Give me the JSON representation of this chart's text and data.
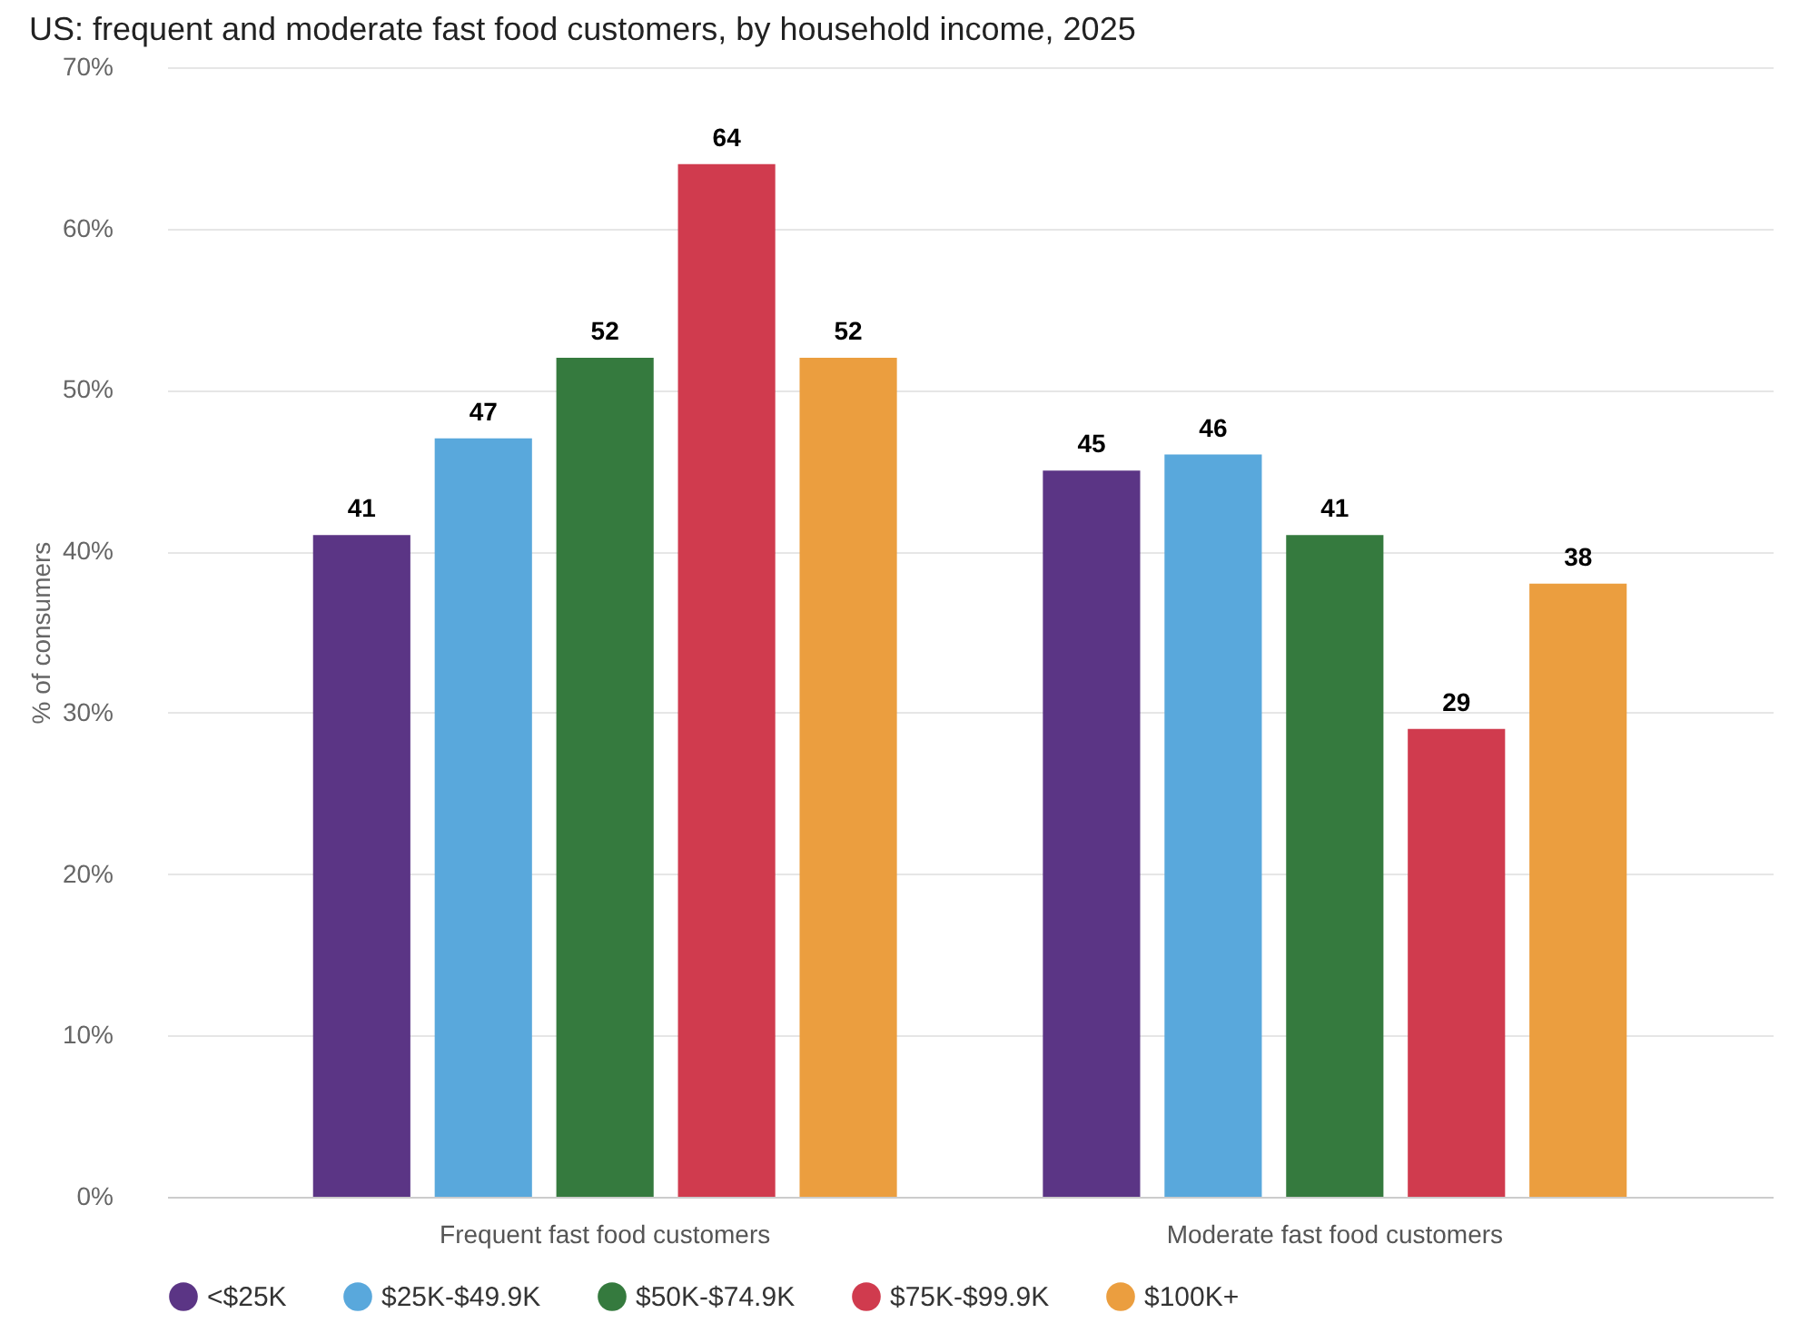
{
  "chart_data": {
    "type": "bar",
    "title": "US: frequent and moderate fast food customers, by household income, 2025",
    "ylabel": "% of consumers",
    "categories": [
      "Frequent fast food customers",
      "Moderate fast food customers"
    ],
    "series": [
      {
        "name": "<$25K",
        "color": "#5b3585",
        "values": [
          41,
          45
        ]
      },
      {
        "name": "$25K-$49.9K",
        "color": "#59a8dc",
        "values": [
          47,
          46
        ]
      },
      {
        "name": "$50K-$74.9K",
        "color": "#357a3e",
        "values": [
          52,
          41
        ]
      },
      {
        "name": "$75K-$99.9K",
        "color": "#d03b4e",
        "values": [
          64,
          29
        ]
      },
      {
        "name": "$100K+",
        "color": "#eb9e3f",
        "values": [
          52,
          38
        ]
      }
    ],
    "ylim": [
      0,
      70
    ],
    "yticks": [
      {
        "value": 0,
        "label": "0%"
      },
      {
        "value": 10,
        "label": "10%"
      },
      {
        "value": 20,
        "label": "20%"
      },
      {
        "value": 30,
        "label": "30%"
      },
      {
        "value": 40,
        "label": "40%"
      },
      {
        "value": 50,
        "label": "50%"
      },
      {
        "value": 60,
        "label": "60%"
      },
      {
        "value": 70,
        "label": "70%"
      }
    ],
    "grid": "y",
    "legend": "bottom",
    "data_labels": true
  }
}
